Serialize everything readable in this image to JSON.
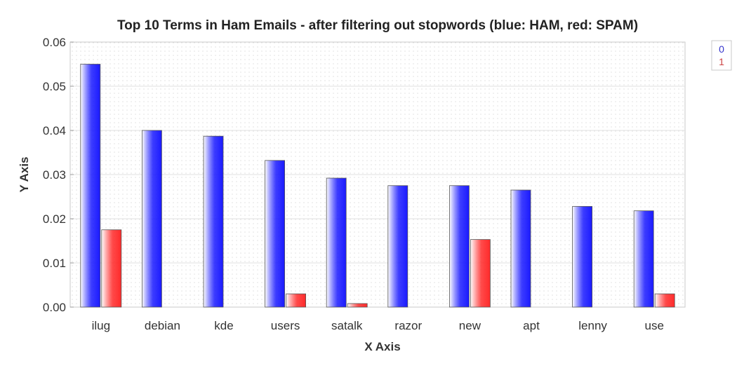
{
  "chart_data": {
    "type": "bar",
    "title": "Top 10 Terms in Ham Emails - after filtering out stopwords (blue: HAM, red: SPAM)",
    "xlabel": "X Axis",
    "ylabel": "Y Axis",
    "categories": [
      "ilug",
      "debian",
      "kde",
      "users",
      "satalk",
      "razor",
      "new",
      "apt",
      "lenny",
      "use"
    ],
    "series": [
      {
        "name": "0",
        "color": "#1a1aff",
        "values": [
          0.055,
          0.04,
          0.0387,
          0.0332,
          0.0292,
          0.0275,
          0.0275,
          0.0265,
          0.0228,
          0.0218
        ]
      },
      {
        "name": "1",
        "color": "#ff2a2a",
        "values": [
          0.0175,
          0.0,
          0.0,
          0.003,
          0.0008,
          0.0,
          0.0153,
          0.0,
          0.0,
          0.003
        ]
      }
    ],
    "ylim": [
      0,
      0.06
    ],
    "yticks": [
      "0.00",
      "0.01",
      "0.02",
      "0.03",
      "0.04",
      "0.05",
      "0.06"
    ],
    "grid": true,
    "legend_position": "top-right"
  }
}
